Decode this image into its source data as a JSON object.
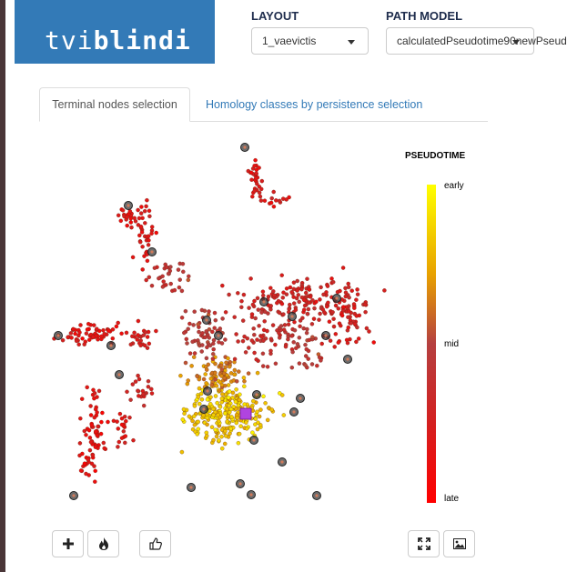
{
  "header": {
    "logo_light": "tvi",
    "logo_bold": "blindi",
    "layout_label": "LAYOUT",
    "layout_value": "1_vaevictis",
    "path_model_label": "PATH MODEL",
    "path_model_value": "calculatedPseudotime90newPseud"
  },
  "tabs": [
    {
      "label": "Terminal nodes selection",
      "active": true
    },
    {
      "label": "Homology classes by persistence selection",
      "active": false
    }
  ],
  "legend": {
    "title": "PSEUDOTIME",
    "ticks": [
      "early",
      "mid",
      "late"
    ]
  },
  "toolbar": {
    "left_icons": [
      "plus-icon",
      "fire-icon",
      "thumbs-up-icon"
    ],
    "right_icons": [
      "expand-icon",
      "image-icon"
    ]
  },
  "colors": {
    "brand": "#337ab7",
    "selected_node": "#b044e0",
    "terminal_node": "#333333"
  }
}
